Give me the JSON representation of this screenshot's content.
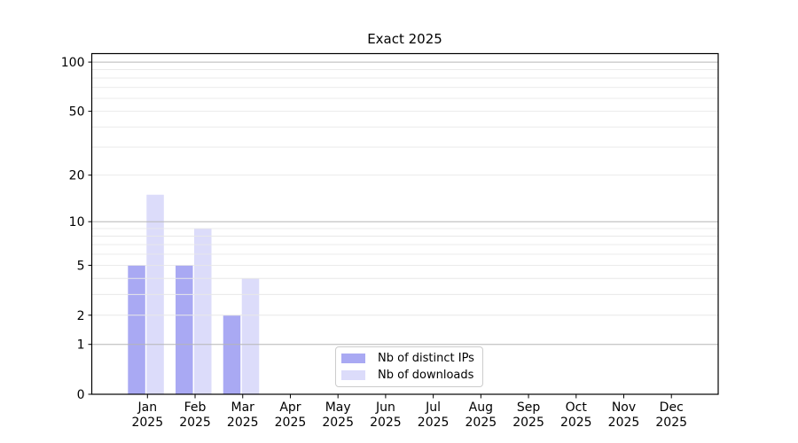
{
  "figure": {
    "background": "#ffffff"
  },
  "chart_data": {
    "type": "bar",
    "title": "Exact 2025",
    "categories": [
      "Jan",
      "Feb",
      "Mar",
      "Apr",
      "May",
      "Jun",
      "Jul",
      "Aug",
      "Sep",
      "Oct",
      "Nov",
      "Dec"
    ],
    "category_year": "2025",
    "series": [
      {
        "name": "Nb of distinct IPs",
        "color": "#a9a9f3",
        "values": [
          5,
          5,
          2,
          0,
          0,
          0,
          0,
          0,
          0,
          0,
          0,
          0
        ]
      },
      {
        "name": "Nb of downloads",
        "color": "#dcdcfa",
        "values": [
          15,
          9,
          4,
          0,
          0,
          0,
          0,
          0,
          0,
          0,
          0,
          0
        ]
      }
    ],
    "y_axis": {
      "scale": "log1p",
      "tick_values": [
        0,
        1,
        2,
        5,
        10,
        20,
        50,
        100
      ],
      "range_max": 112
    },
    "grid": {
      "major_values": [
        1,
        10,
        100
      ],
      "minor_values": [
        2,
        3,
        4,
        5,
        6,
        7,
        8,
        9,
        20,
        30,
        40,
        50,
        60,
        70,
        80,
        90
      ],
      "major_color": "#b6b6b6",
      "minor_color": "#e8e8e8"
    },
    "legend": {
      "position": "lower center",
      "entries": [
        "Nb of distinct IPs",
        "Nb of downloads"
      ]
    },
    "axis_color": "#000000",
    "text_color": "#000000"
  }
}
